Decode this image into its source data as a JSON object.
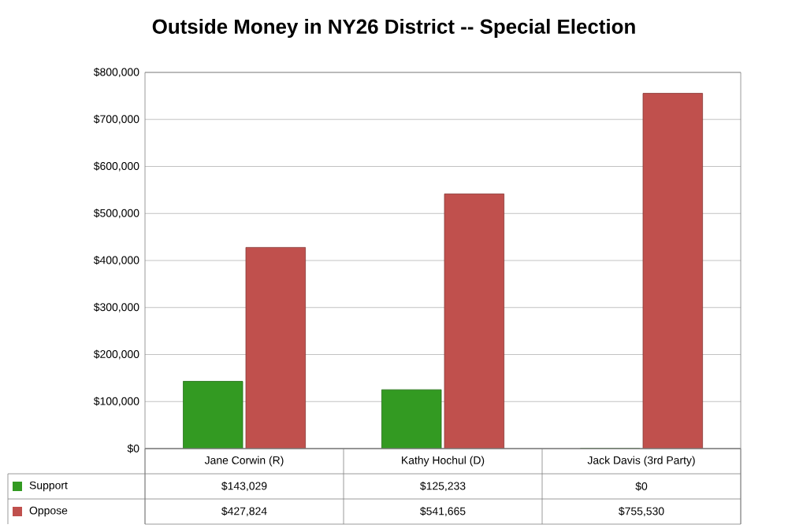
{
  "chart_data": {
    "type": "bar",
    "title": "Outside Money in NY26 District -- Special Election",
    "categories": [
      "Jane Corwin (R)",
      "Kathy Hochul (D)",
      "Jack Davis (3rd Party)"
    ],
    "series": [
      {
        "name": "Support",
        "color": "#339a22",
        "values": [
          143029,
          125233,
          0
        ],
        "value_labels": [
          "$143,029",
          "$125,233",
          "$0"
        ]
      },
      {
        "name": "Oppose",
        "color": "#c0504d",
        "values": [
          427824,
          541665,
          755530
        ],
        "value_labels": [
          "$427,824",
          "$541,665",
          "$755,530"
        ]
      }
    ],
    "ylim": [
      0,
      800000
    ],
    "yticks": [
      {
        "value": 0,
        "label": "$0"
      },
      {
        "value": 100000,
        "label": "$100,000"
      },
      {
        "value": 200000,
        "label": "$200,000"
      },
      {
        "value": 300000,
        "label": "$300,000"
      },
      {
        "value": 400000,
        "label": "$400,000"
      },
      {
        "value": 500000,
        "label": "$500,000"
      },
      {
        "value": 600000,
        "label": "$600,000"
      },
      {
        "value": 700000,
        "label": "$700,000"
      },
      {
        "value": 800000,
        "label": "$800,000"
      }
    ],
    "grid": "y",
    "legend": "bottom"
  }
}
